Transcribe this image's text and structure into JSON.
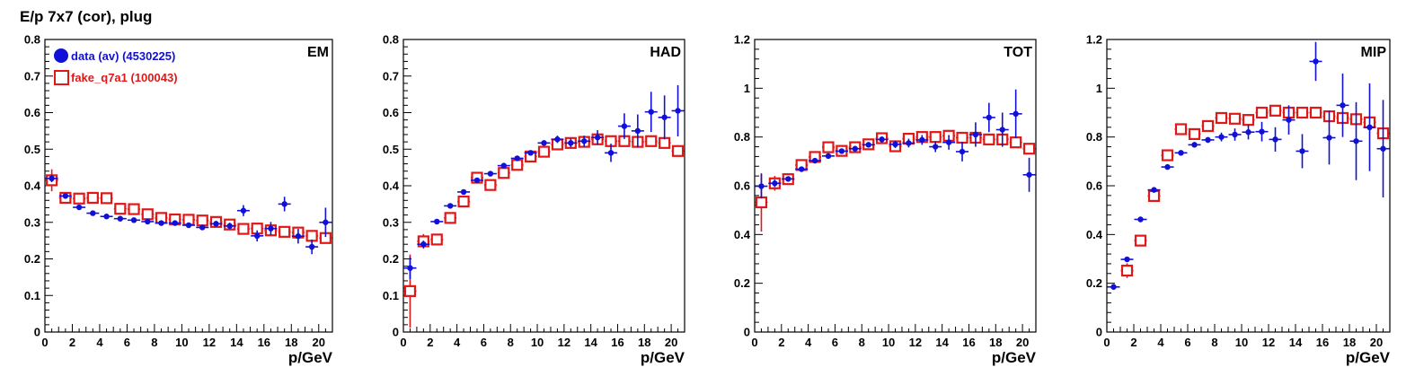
{
  "title": "E/p 7x7 (cor), plug",
  "colors": {
    "data": "#1010d8",
    "fake": "#e01818",
    "axis": "#000000"
  },
  "legend": {
    "placement": "top-left of first panel",
    "entries": [
      {
        "label": "data (av) (4530225)",
        "color": "#1010d8",
        "marker": "filled-circle"
      },
      {
        "label": "fake_q7a1 (100043)",
        "color": "#e01818",
        "marker": "open-square"
      }
    ]
  },
  "chart_data": [
    {
      "type": "scatter",
      "panel_label": "EM",
      "xlabel": "p/GeV",
      "xlim": [
        0,
        21
      ],
      "ylim": [
        0,
        0.8
      ],
      "xticks": [
        0,
        2,
        4,
        6,
        8,
        10,
        12,
        14,
        16,
        18,
        20
      ],
      "yticks": [
        0,
        0.1,
        0.2,
        0.3,
        0.4,
        0.5,
        0.6,
        0.7,
        0.8
      ],
      "ytick_labels": [
        "0",
        "0.1",
        "0.2",
        "0.3",
        "0.4",
        "0.5",
        "0.6",
        "0.7",
        "0.8"
      ],
      "x": [
        0.5,
        1.5,
        2.5,
        3.5,
        4.5,
        5.5,
        6.5,
        7.5,
        8.5,
        9.5,
        10.5,
        11.5,
        12.5,
        13.5,
        14.5,
        15.5,
        16.5,
        17.5,
        18.5,
        19.5,
        20.5
      ],
      "series": [
        {
          "name": "data (av) (4530225)",
          "marker": "filled-circle",
          "values": [
            0.42,
            0.372,
            0.341,
            0.325,
            0.316,
            0.31,
            0.306,
            0.302,
            0.298,
            0.298,
            0.292,
            0.286,
            0.296,
            0.29,
            0.332,
            0.263,
            0.283,
            0.35,
            0.262,
            0.233,
            0.3
          ],
          "errors": [
            0.01,
            0.006,
            0.004,
            0.004,
            0.004,
            0.004,
            0.004,
            0.004,
            0.005,
            0.005,
            0.006,
            0.007,
            0.008,
            0.009,
            0.015,
            0.015,
            0.018,
            0.02,
            0.02,
            0.02,
            0.04
          ]
        },
        {
          "name": "fake_q7a1 (100043)",
          "marker": "open-square",
          "values": [
            0.415,
            0.367,
            0.365,
            0.367,
            0.366,
            0.337,
            0.336,
            0.322,
            0.312,
            0.308,
            0.307,
            0.305,
            0.301,
            0.294,
            0.282,
            0.283,
            0.278,
            0.274,
            0.272,
            0.263,
            0.257
          ],
          "errors": [
            0.03,
            0.01,
            0.008,
            0.008,
            0.008,
            0.008,
            0.008,
            0.008,
            0.008,
            0.008,
            0.008,
            0.008,
            0.008,
            0.008,
            0.008,
            0.008,
            0.008,
            0.008,
            0.008,
            0.008,
            0.008
          ]
        }
      ]
    },
    {
      "type": "scatter",
      "panel_label": "HAD",
      "xlabel": "p/GeV",
      "xlim": [
        0,
        21
      ],
      "ylim": [
        0,
        0.8
      ],
      "xticks": [
        0,
        2,
        4,
        6,
        8,
        10,
        12,
        14,
        16,
        18,
        20
      ],
      "yticks": [
        0,
        0.1,
        0.2,
        0.3,
        0.4,
        0.5,
        0.6,
        0.7,
        0.8
      ],
      "ytick_labels": [
        "0",
        "0.1",
        "0.2",
        "0.3",
        "0.4",
        "0.5",
        "0.6",
        "0.7",
        "0.8"
      ],
      "x": [
        0.5,
        1.5,
        2.5,
        3.5,
        4.5,
        5.5,
        6.5,
        7.5,
        8.5,
        9.5,
        10.5,
        11.5,
        12.5,
        13.5,
        14.5,
        15.5,
        16.5,
        17.5,
        18.5,
        19.5,
        20.5
      ],
      "series": [
        {
          "name": "data (av) (4530225)",
          "marker": "filled-circle",
          "values": [
            0.175,
            0.24,
            0.302,
            0.345,
            0.383,
            0.415,
            0.433,
            0.455,
            0.475,
            0.49,
            0.517,
            0.527,
            0.517,
            0.522,
            0.532,
            0.49,
            0.563,
            0.55,
            0.602,
            0.587,
            0.605
          ],
          "errors": [
            0.03,
            0.01,
            0.005,
            0.005,
            0.005,
            0.005,
            0.005,
            0.005,
            0.006,
            0.006,
            0.007,
            0.01,
            0.012,
            0.015,
            0.02,
            0.025,
            0.035,
            0.045,
            0.055,
            0.06,
            0.07
          ]
        },
        {
          "name": "fake_q7a1 (100043)",
          "marker": "open-square",
          "values": [
            0.112,
            0.248,
            0.253,
            0.312,
            0.357,
            0.422,
            0.402,
            0.435,
            0.457,
            0.48,
            0.493,
            0.513,
            0.517,
            0.52,
            0.527,
            0.522,
            0.522,
            0.52,
            0.522,
            0.517,
            0.495
          ],
          "errors": [
            0.1,
            0.02,
            0.015,
            0.012,
            0.012,
            0.012,
            0.012,
            0.012,
            0.012,
            0.012,
            0.012,
            0.012,
            0.012,
            0.012,
            0.012,
            0.012,
            0.012,
            0.012,
            0.012,
            0.012,
            0.012
          ]
        }
      ]
    },
    {
      "type": "scatter",
      "panel_label": "TOT",
      "xlabel": "p/GeV",
      "xlim": [
        0,
        21
      ],
      "ylim": [
        0,
        1.2
      ],
      "xticks": [
        0,
        2,
        4,
        6,
        8,
        10,
        12,
        14,
        16,
        18,
        20
      ],
      "yticks": [
        0,
        0.2,
        0.4,
        0.6,
        0.8,
        1.0,
        1.2
      ],
      "ytick_labels": [
        "0",
        "0.2",
        "0.4",
        "0.6",
        "0.8",
        "1",
        "1.2"
      ],
      "x": [
        0.5,
        1.5,
        2.5,
        3.5,
        4.5,
        5.5,
        6.5,
        7.5,
        8.5,
        9.5,
        10.5,
        11.5,
        12.5,
        13.5,
        14.5,
        15.5,
        16.5,
        17.5,
        18.5,
        19.5,
        20.5
      ],
      "series": [
        {
          "name": "data (av) (4530225)",
          "marker": "filled-circle",
          "values": [
            0.598,
            0.61,
            0.628,
            0.668,
            0.703,
            0.722,
            0.742,
            0.752,
            0.768,
            0.79,
            0.77,
            0.775,
            0.788,
            0.76,
            0.778,
            0.74,
            0.81,
            0.88,
            0.83,
            0.895,
            0.645
          ],
          "errors": [
            0.05,
            0.015,
            0.01,
            0.008,
            0.008,
            0.008,
            0.008,
            0.009,
            0.01,
            0.012,
            0.015,
            0.018,
            0.02,
            0.022,
            0.03,
            0.04,
            0.05,
            0.06,
            0.07,
            0.1,
            0.07
          ]
        },
        {
          "name": "fake_q7a1 (100043)",
          "marker": "open-square",
          "values": [
            0.532,
            0.61,
            0.627,
            0.685,
            0.718,
            0.758,
            0.743,
            0.758,
            0.77,
            0.795,
            0.762,
            0.793,
            0.8,
            0.8,
            0.805,
            0.797,
            0.797,
            0.79,
            0.79,
            0.778,
            0.752
          ],
          "errors": [
            0.12,
            0.03,
            0.02,
            0.015,
            0.015,
            0.015,
            0.015,
            0.015,
            0.015,
            0.015,
            0.015,
            0.015,
            0.015,
            0.015,
            0.015,
            0.015,
            0.015,
            0.015,
            0.015,
            0.015,
            0.015
          ]
        }
      ]
    },
    {
      "type": "scatter",
      "panel_label": "MIP",
      "xlabel": "p/GeV",
      "xlim": [
        0,
        21
      ],
      "ylim": [
        0,
        1.2
      ],
      "xticks": [
        0,
        2,
        4,
        6,
        8,
        10,
        12,
        14,
        16,
        18,
        20
      ],
      "yticks": [
        0,
        0.2,
        0.4,
        0.6,
        0.8,
        1.0,
        1.2
      ],
      "ytick_labels": [
        "0",
        "0.2",
        "0.4",
        "0.6",
        "0.8",
        "1",
        "1.2"
      ],
      "x": [
        0.5,
        1.5,
        2.5,
        3.5,
        4.5,
        5.5,
        6.5,
        7.5,
        8.5,
        9.5,
        10.5,
        11.5,
        12.5,
        13.5,
        14.5,
        15.5,
        16.5,
        17.5,
        18.5,
        19.5,
        20.5
      ],
      "series": [
        {
          "name": "data (av) (4530225)",
          "marker": "filled-circle",
          "values": [
            0.185,
            0.298,
            0.462,
            0.583,
            0.677,
            0.735,
            0.768,
            0.788,
            0.8,
            0.81,
            0.82,
            0.822,
            0.79,
            0.87,
            0.742,
            1.11,
            0.797,
            0.93,
            0.783,
            0.84,
            0.752
          ],
          "errors": [
            0.005,
            0.006,
            0.006,
            0.006,
            0.006,
            0.008,
            0.01,
            0.012,
            0.018,
            0.025,
            0.03,
            0.04,
            0.05,
            0.06,
            0.07,
            0.08,
            0.11,
            0.13,
            0.16,
            0.18,
            0.2
          ]
        },
        {
          "name": "fake_q7a1 (100043)",
          "marker": "open-square",
          "values": [
            0.0,
            0.252,
            0.375,
            0.558,
            0.725,
            0.832,
            0.812,
            0.845,
            0.878,
            0.875,
            0.87,
            0.9,
            0.908,
            0.9,
            0.9,
            0.9,
            0.885,
            0.878,
            0.873,
            0.86,
            0.815
          ],
          "errors": [
            0.0,
            0.03,
            0.02,
            0.018,
            0.015,
            0.015,
            0.015,
            0.015,
            0.015,
            0.015,
            0.015,
            0.015,
            0.015,
            0.015,
            0.015,
            0.015,
            0.015,
            0.015,
            0.015,
            0.015,
            0.015
          ]
        }
      ]
    }
  ]
}
